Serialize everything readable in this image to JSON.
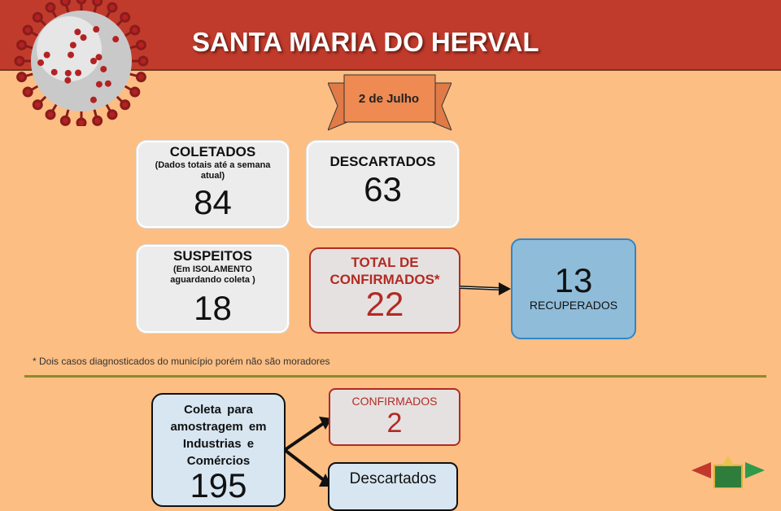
{
  "header": {
    "title": "SANTA MARIA DO HERVAL"
  },
  "date": "2 de Julho",
  "cards": {
    "coletados": {
      "title": "COLETADOS",
      "subtitle": "(Dados totais até a semana atual)",
      "value": "84"
    },
    "descartados": {
      "title": "DESCARTADOS",
      "value": "63"
    },
    "suspeitos": {
      "title": "SUSPEITOS",
      "subtitle": "(Em ISOLAMENTO aguardando coleta )",
      "value": "18"
    },
    "confirmados": {
      "title": "TOTAL DE CONFIRMADOS*",
      "value": "22"
    },
    "recuperados": {
      "title": "RECUPERADOS",
      "value": "13"
    }
  },
  "footnote": "* Dois casos diagnosticados do município porém não são moradores",
  "industry": {
    "source": {
      "title": "Coleta para amostragem em Industrias e Comércios",
      "value": "195"
    },
    "confirmados": {
      "title": "CONFIRMADOS",
      "value": "2"
    },
    "descartados": {
      "title": "Descartados"
    }
  },
  "colors": {
    "header": "#c13b2c",
    "background": "#fcbe82",
    "confirmed": "#b22b23",
    "recovered": "#8fbcd9"
  }
}
